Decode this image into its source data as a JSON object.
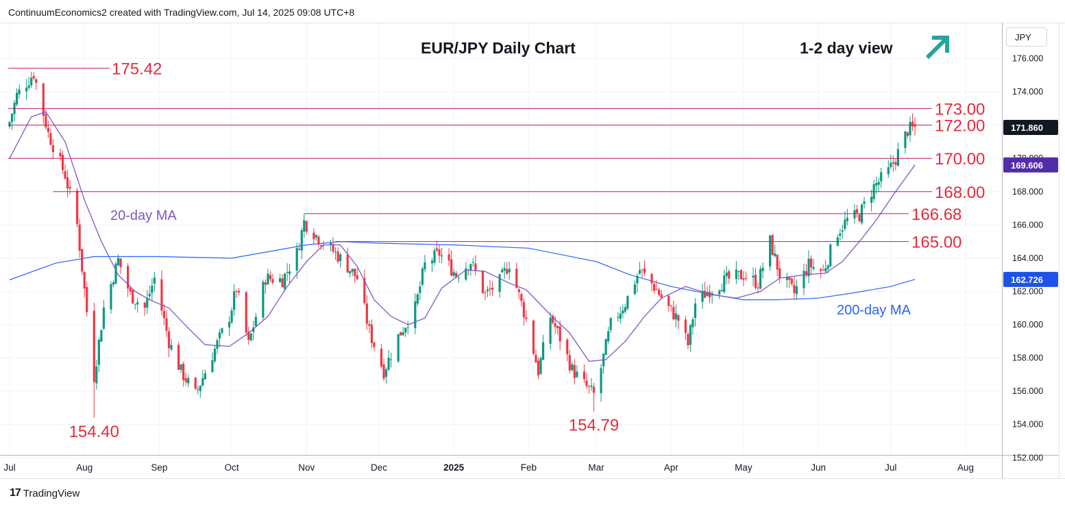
{
  "header": {
    "attribution": "ContinuumEconomics2 created with TradingView.com, Jul 14, 2025 09:08 UTC+8"
  },
  "footer": {
    "brand": "TradingView",
    "logo_mark": "17"
  },
  "currency_selector": {
    "value": "JPY"
  },
  "colors": {
    "up": "#089981",
    "down": "#f23645",
    "ma20": "#7e57c2",
    "ma200": "#2962ff",
    "level_line": "#c2185b",
    "level_text": "#e8293c",
    "arrow": "#26a69a",
    "price_badge": "#131722",
    "ma20_badge": "#512da8",
    "ma200_badge": "#1e53e5"
  },
  "icons": {
    "view_direction": "arrow-up-right-icon"
  },
  "chart_data": {
    "type": "candlestick",
    "title": "EUR/JPY Daily Chart",
    "view_label": "1-2 day view",
    "y_axis_ticks": [
      "176.000",
      "174.000",
      "172.000",
      "170.000",
      "168.000",
      "166.000",
      "164.000",
      "162.000",
      "160.000",
      "158.000",
      "156.000",
      "154.000",
      "152.000"
    ],
    "ylim": [
      152,
      177.3
    ],
    "x_axis_labels": [
      "Jul",
      "Aug",
      "Sep",
      "Oct",
      "Nov",
      "Dec",
      "2025",
      "Feb",
      "Mar",
      "Apr",
      "May",
      "Jun",
      "Jul",
      "Aug"
    ],
    "price_badges": {
      "last": "171.860",
      "ma20": "169.606",
      "ma200": "162.726"
    },
    "levels": [
      {
        "value": 175.42,
        "label": "175.42"
      },
      {
        "value": 173.0,
        "label": "173.00"
      },
      {
        "value": 172.0,
        "label": "172.00"
      },
      {
        "value": 170.0,
        "label": "170.00"
      },
      {
        "value": 168.0,
        "label": "168.00"
      },
      {
        "value": 166.68,
        "label": "166.68"
      },
      {
        "value": 165.0,
        "label": "165.00"
      }
    ],
    "low_annotations": [
      {
        "label": "154.40",
        "value": 154.4,
        "date": "2024-08-05"
      },
      {
        "label": "154.79",
        "value": 154.79,
        "date": "2025-02-28"
      }
    ],
    "series_labels": {
      "ma20": "20-day MA",
      "ma200": "200-day MA"
    },
    "close_anchors": [
      [
        "2024-07-01",
        172.2
      ],
      [
        "2024-07-04",
        173.8
      ],
      [
        "2024-07-11",
        175.1
      ],
      [
        "2024-07-17",
        171.5
      ],
      [
        "2024-07-24",
        169.0
      ],
      [
        "2024-07-29",
        166.0
      ],
      [
        "2024-08-05",
        156.9
      ],
      [
        "2024-08-09",
        161.0
      ],
      [
        "2024-08-15",
        163.9
      ],
      [
        "2024-08-20",
        161.8
      ],
      [
        "2024-08-26",
        161.0
      ],
      [
        "2024-08-30",
        162.8
      ],
      [
        "2024-09-05",
        159.0
      ],
      [
        "2024-09-10",
        157.2
      ],
      [
        "2024-09-16",
        155.8
      ],
      [
        "2024-09-23",
        158.2
      ],
      [
        "2024-09-30",
        160.5
      ],
      [
        "2024-10-03",
        162.2
      ],
      [
        "2024-10-08",
        158.8
      ],
      [
        "2024-10-15",
        162.8
      ],
      [
        "2024-10-22",
        162.7
      ],
      [
        "2024-10-28",
        164.3
      ],
      [
        "2024-10-31",
        166.2
      ],
      [
        "2024-11-06",
        165.2
      ],
      [
        "2024-11-13",
        164.3
      ],
      [
        "2024-11-18",
        163.5
      ],
      [
        "2024-11-22",
        162.8
      ],
      [
        "2024-11-27",
        159.6
      ],
      [
        "2024-12-03",
        157.2
      ],
      [
        "2024-12-09",
        159.3
      ],
      [
        "2024-12-16",
        161.0
      ],
      [
        "2024-12-20",
        163.6
      ],
      [
        "2024-12-26",
        164.3
      ],
      [
        "2025-01-02",
        163.0
      ],
      [
        "2025-01-08",
        163.8
      ],
      [
        "2025-01-14",
        161.8
      ],
      [
        "2025-01-20",
        162.6
      ],
      [
        "2025-01-24",
        163.7
      ],
      [
        "2025-01-31",
        160.3
      ],
      [
        "2025-02-05",
        157.2
      ],
      [
        "2025-02-10",
        160.5
      ],
      [
        "2025-02-14",
        159.2
      ],
      [
        "2025-02-19",
        157.3
      ],
      [
        "2025-02-24",
        156.4
      ],
      [
        "2025-02-28",
        155.8
      ],
      [
        "2025-03-03",
        157.4
      ],
      [
        "2025-03-07",
        160.0
      ],
      [
        "2025-03-13",
        161.3
      ],
      [
        "2025-03-19",
        163.3
      ],
      [
        "2025-03-25",
        162.3
      ],
      [
        "2025-03-31",
        161.0
      ],
      [
        "2025-04-04",
        160.3
      ],
      [
        "2025-04-08",
        158.8
      ],
      [
        "2025-04-11",
        161.3
      ],
      [
        "2025-04-16",
        162.0
      ],
      [
        "2025-04-24",
        162.7
      ],
      [
        "2025-05-01",
        163.0
      ],
      [
        "2025-05-07",
        162.5
      ],
      [
        "2025-05-12",
        165.0
      ],
      [
        "2025-05-16",
        163.0
      ],
      [
        "2025-05-22",
        161.9
      ],
      [
        "2025-05-28",
        163.6
      ],
      [
        "2025-06-03",
        163.2
      ],
      [
        "2025-06-09",
        165.6
      ],
      [
        "2025-06-13",
        166.3
      ],
      [
        "2025-06-18",
        166.6
      ],
      [
        "2025-06-24",
        168.3
      ],
      [
        "2025-06-30",
        169.2
      ],
      [
        "2025-07-03",
        170.0
      ],
      [
        "2025-07-08",
        171.7
      ],
      [
        "2025-07-11",
        171.86
      ]
    ],
    "ma20_anchors": [
      [
        "2024-07-01",
        170.0
      ],
      [
        "2024-07-10",
        172.5
      ],
      [
        "2024-07-16",
        172.8
      ],
      [
        "2024-07-24",
        171.0
      ],
      [
        "2024-08-01",
        167.5
      ],
      [
        "2024-08-08",
        165.0
      ],
      [
        "2024-08-15",
        163.0
      ],
      [
        "2024-08-22",
        162.0
      ],
      [
        "2024-08-28",
        161.5
      ],
      [
        "2024-09-05",
        161.0
      ],
      [
        "2024-09-13",
        159.8
      ],
      [
        "2024-09-20",
        158.8
      ],
      [
        "2024-09-30",
        158.7
      ],
      [
        "2024-10-08",
        159.5
      ],
      [
        "2024-10-16",
        160.5
      ],
      [
        "2024-10-24",
        162.3
      ],
      [
        "2024-11-01",
        163.8
      ],
      [
        "2024-11-08",
        164.8
      ],
      [
        "2024-11-15",
        164.8
      ],
      [
        "2024-11-22",
        163.5
      ],
      [
        "2024-11-29",
        161.5
      ],
      [
        "2024-12-06",
        160.5
      ],
      [
        "2024-12-13",
        160.0
      ],
      [
        "2024-12-20",
        160.4
      ],
      [
        "2024-12-27",
        162.2
      ],
      [
        "2025-01-06",
        163.3
      ],
      [
        "2025-01-14",
        163.2
      ],
      [
        "2025-01-24",
        162.5
      ],
      [
        "2025-01-31",
        162.1
      ],
      [
        "2025-02-10",
        160.6
      ],
      [
        "2025-02-18",
        159.5
      ],
      [
        "2025-02-26",
        157.8
      ],
      [
        "2025-03-05",
        157.9
      ],
      [
        "2025-03-13",
        159.0
      ],
      [
        "2025-03-21",
        160.5
      ],
      [
        "2025-03-28",
        161.6
      ],
      [
        "2025-04-07",
        162.3
      ],
      [
        "2025-04-18",
        161.8
      ],
      [
        "2025-04-28",
        161.6
      ],
      [
        "2025-05-08",
        162.0
      ],
      [
        "2025-05-16",
        162.8
      ],
      [
        "2025-05-26",
        163.0
      ],
      [
        "2025-06-04",
        163.1
      ],
      [
        "2025-06-11",
        163.8
      ],
      [
        "2025-06-18",
        165.0
      ],
      [
        "2025-06-25",
        166.3
      ],
      [
        "2025-07-02",
        167.8
      ],
      [
        "2025-07-11",
        169.606
      ]
    ],
    "ma200_anchors": [
      [
        "2024-07-01",
        162.7
      ],
      [
        "2024-07-20",
        163.7
      ],
      [
        "2024-08-05",
        164.1
      ],
      [
        "2024-09-01",
        164.1
      ],
      [
        "2024-10-01",
        164.0
      ],
      [
        "2024-11-01",
        164.8
      ],
      [
        "2024-11-15",
        165.0
      ],
      [
        "2024-12-01",
        164.9
      ],
      [
        "2025-01-01",
        164.8
      ],
      [
        "2025-02-01",
        164.6
      ],
      [
        "2025-03-01",
        163.8
      ],
      [
        "2025-03-15",
        163.0
      ],
      [
        "2025-04-01",
        162.3
      ],
      [
        "2025-04-15",
        161.9
      ],
      [
        "2025-05-01",
        161.5
      ],
      [
        "2025-05-15",
        161.5
      ],
      [
        "2025-06-01",
        161.6
      ],
      [
        "2025-06-15",
        161.9
      ],
      [
        "2025-07-01",
        162.3
      ],
      [
        "2025-07-11",
        162.726
      ]
    ]
  }
}
